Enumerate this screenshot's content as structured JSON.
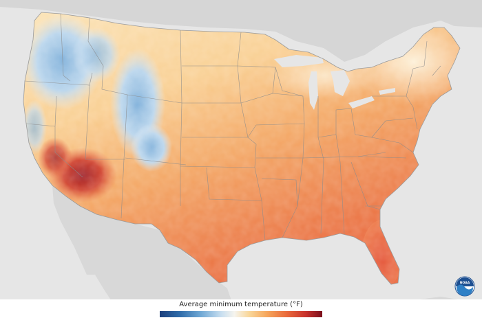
{
  "map": {
    "region": "contiguous-united-states",
    "variable": "average-minimum-temperature",
    "colors": {
      "ocean": "#e6e6e6",
      "neighbor_land": "#d4d4d4",
      "coldest": "#1b3f7c",
      "cold": "#6ea7d4",
      "neutral": "#f6f4ee",
      "mild": "#f9d79a",
      "warm": "#f6a65b",
      "hot": "#ea6a3a",
      "hottest": "#7a0f1c",
      "state_border": "#8c8c8c"
    }
  },
  "legend": {
    "title": "Average minimum temperature (°F)",
    "scale": "blue-to-red diverging"
  },
  "logo": {
    "name": "noaa-logo",
    "text": "NOAA"
  }
}
